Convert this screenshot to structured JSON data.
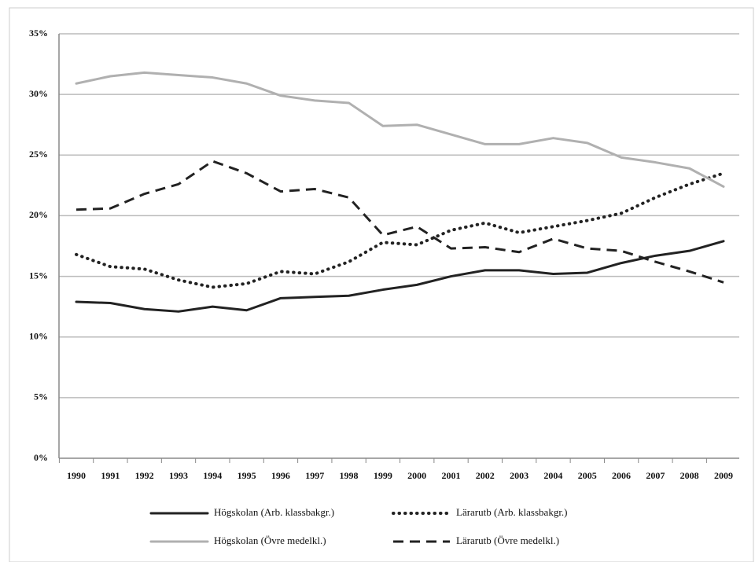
{
  "chart_data": {
    "type": "line",
    "categories": [
      "1990",
      "1991",
      "1992",
      "1993",
      "1994",
      "1995",
      "1996",
      "1997",
      "1998",
      "1999",
      "2000",
      "2001",
      "2002",
      "2003",
      "2004",
      "2005",
      "2006",
      "2007",
      "2008",
      "2009"
    ],
    "ylim": [
      0,
      35
    ],
    "yticks": [
      {
        "value": 0,
        "label": "0%"
      },
      {
        "value": 5,
        "label": "5%"
      },
      {
        "value": 10,
        "label": "10%"
      },
      {
        "value": 15,
        "label": "15%"
      },
      {
        "value": 20,
        "label": "20%"
      },
      {
        "value": 25,
        "label": "25%"
      },
      {
        "value": 30,
        "label": "30%"
      },
      {
        "value": 35,
        "label": "35%"
      }
    ],
    "grid": true,
    "legend": "bottom",
    "series": [
      {
        "name": "Högskolan (Arb. klassbakgr.)",
        "color": "#222222",
        "style": "solid",
        "values": [
          12.9,
          12.8,
          12.3,
          12.1,
          12.5,
          12.2,
          13.2,
          13.3,
          13.4,
          13.9,
          14.3,
          15.0,
          15.5,
          15.5,
          15.2,
          15.3,
          16.1,
          16.7,
          17.1,
          17.9
        ]
      },
      {
        "name": "Lärarutb (Arb. klassbakgr.)",
        "color": "#222222",
        "style": "dotted",
        "values": [
          16.8,
          15.8,
          15.6,
          14.7,
          14.1,
          14.4,
          15.4,
          15.2,
          16.2,
          17.8,
          17.6,
          18.8,
          19.4,
          18.6,
          19.1,
          19.6,
          20.2,
          21.5,
          22.6,
          23.5
        ]
      },
      {
        "name": "Högskolan (Övre medelkl.)",
        "color": "#b0b0b0",
        "style": "solid",
        "values": [
          30.9,
          31.5,
          31.8,
          31.6,
          31.4,
          30.9,
          29.9,
          29.5,
          29.3,
          27.4,
          27.5,
          26.7,
          25.9,
          25.9,
          26.4,
          26.0,
          24.8,
          24.4,
          23.9,
          22.4
        ]
      },
      {
        "name": "Lärarutb (Övre medelkl.)",
        "color": "#222222",
        "style": "dashed",
        "values": [
          20.5,
          20.6,
          21.8,
          22.6,
          24.5,
          23.5,
          22.0,
          22.2,
          21.5,
          18.4,
          19.1,
          17.3,
          17.4,
          17.0,
          18.1,
          17.3,
          17.1,
          16.2,
          15.4,
          14.5
        ]
      }
    ]
  }
}
